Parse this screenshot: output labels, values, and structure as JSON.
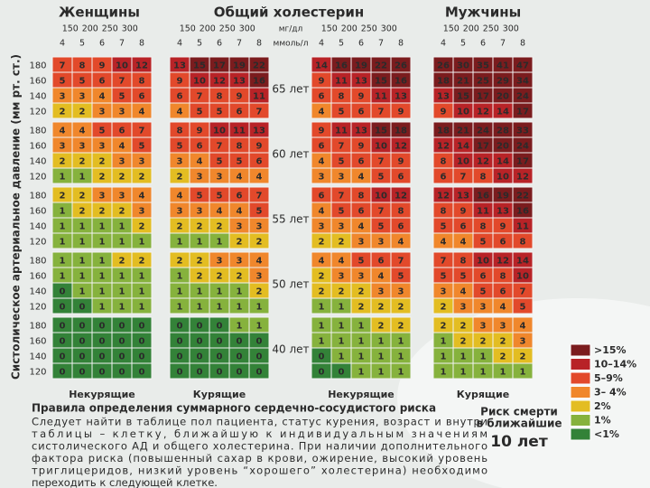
{
  "header": {
    "women": "Женщины",
    "cholesterol": "Общий холестерин",
    "men": "Мужчины",
    "mg_ticks": [
      150,
      200,
      250,
      300
    ],
    "mg_unit": "мг/дл",
    "mmol_ticks": [
      4,
      5,
      6,
      7,
      8
    ],
    "mmol_unit": "ммоль/л"
  },
  "y_axis_label": "Систолическое артериальное давление (мм рт. ст.)",
  "bp_levels": [
    180,
    160,
    140,
    120
  ],
  "ages": [
    "65 лет",
    "60 лет",
    "55 лет",
    "50 лет",
    "40 лет"
  ],
  "panels": [
    {
      "label": "Некурящие",
      "groups": [
        [
          [
            7,
            8,
            9,
            10,
            12
          ],
          [
            5,
            5,
            6,
            7,
            8
          ],
          [
            3,
            3,
            4,
            5,
            6
          ],
          [
            2,
            2,
            3,
            3,
            4
          ]
        ],
        [
          [
            4,
            4,
            5,
            6,
            7
          ],
          [
            3,
            3,
            3,
            4,
            5
          ],
          [
            2,
            2,
            2,
            3,
            3
          ],
          [
            1,
            1,
            2,
            2,
            2
          ]
        ],
        [
          [
            2,
            2,
            3,
            3,
            4
          ],
          [
            1,
            2,
            2,
            2,
            3
          ],
          [
            1,
            1,
            1,
            1,
            2
          ],
          [
            1,
            1,
            1,
            1,
            1
          ]
        ],
        [
          [
            1,
            1,
            1,
            2,
            2
          ],
          [
            1,
            1,
            1,
            1,
            1
          ],
          [
            0,
            1,
            1,
            1,
            1
          ],
          [
            0,
            0,
            1,
            1,
            1
          ]
        ],
        [
          [
            0,
            0,
            0,
            0,
            0
          ],
          [
            0,
            0,
            0,
            0,
            0
          ],
          [
            0,
            0,
            0,
            0,
            0
          ],
          [
            0,
            0,
            0,
            0,
            0
          ]
        ]
      ]
    },
    {
      "label": "Курящие",
      "groups": [
        [
          [
            13,
            15,
            17,
            19,
            22
          ],
          [
            9,
            10,
            12,
            13,
            16
          ],
          [
            6,
            7,
            8,
            9,
            11
          ],
          [
            4,
            5,
            5,
            6,
            7
          ]
        ],
        [
          [
            8,
            9,
            10,
            11,
            13
          ],
          [
            5,
            6,
            7,
            8,
            9
          ],
          [
            3,
            4,
            5,
            5,
            6
          ],
          [
            2,
            3,
            3,
            4,
            4
          ]
        ],
        [
          [
            4,
            5,
            5,
            6,
            7
          ],
          [
            3,
            3,
            4,
            4,
            5
          ],
          [
            2,
            2,
            2,
            3,
            3
          ],
          [
            1,
            1,
            1,
            2,
            2
          ]
        ],
        [
          [
            2,
            2,
            3,
            3,
            4
          ],
          [
            1,
            2,
            2,
            2,
            3
          ],
          [
            1,
            1,
            1,
            1,
            2
          ],
          [
            1,
            1,
            1,
            1,
            1
          ]
        ],
        [
          [
            0,
            0,
            0,
            1,
            1
          ],
          [
            0,
            0,
            0,
            0,
            0
          ],
          [
            0,
            0,
            0,
            0,
            0
          ],
          [
            0,
            0,
            0,
            0,
            0
          ]
        ]
      ]
    },
    {
      "label": "Некурящие",
      "groups": [
        [
          [
            14,
            16,
            19,
            22,
            26
          ],
          [
            9,
            11,
            13,
            15,
            16
          ],
          [
            6,
            8,
            9,
            11,
            13
          ],
          [
            4,
            5,
            6,
            7,
            9
          ]
        ],
        [
          [
            9,
            11,
            13,
            15,
            18
          ],
          [
            6,
            7,
            9,
            10,
            12
          ],
          [
            4,
            5,
            6,
            7,
            9
          ],
          [
            3,
            3,
            4,
            5,
            6
          ]
        ],
        [
          [
            6,
            7,
            8,
            10,
            12
          ],
          [
            4,
            5,
            6,
            7,
            8
          ],
          [
            3,
            3,
            4,
            5,
            6
          ],
          [
            2,
            2,
            3,
            3,
            4
          ]
        ],
        [
          [
            4,
            4,
            5,
            6,
            7
          ],
          [
            2,
            3,
            3,
            4,
            5
          ],
          [
            2,
            2,
            2,
            3,
            3
          ],
          [
            1,
            1,
            2,
            2,
            2
          ]
        ],
        [
          [
            1,
            1,
            1,
            2,
            2
          ],
          [
            1,
            1,
            1,
            1,
            1
          ],
          [
            0,
            1,
            1,
            1,
            1
          ],
          [
            0,
            0,
            1,
            1,
            1
          ]
        ]
      ]
    },
    {
      "label": "Курящие",
      "groups": [
        [
          [
            26,
            30,
            35,
            41,
            47
          ],
          [
            18,
            21,
            25,
            29,
            34
          ],
          [
            13,
            15,
            17,
            20,
            24
          ],
          [
            9,
            10,
            12,
            14,
            17
          ]
        ],
        [
          [
            18,
            21,
            24,
            28,
            33
          ],
          [
            12,
            14,
            17,
            20,
            24
          ],
          [
            8,
            10,
            12,
            14,
            17
          ],
          [
            6,
            7,
            8,
            10,
            12
          ]
        ],
        [
          [
            12,
            13,
            16,
            19,
            22
          ],
          [
            8,
            9,
            11,
            13,
            16
          ],
          [
            5,
            6,
            8,
            9,
            11
          ],
          [
            4,
            4,
            5,
            6,
            8
          ]
        ],
        [
          [
            7,
            8,
            10,
            12,
            14
          ],
          [
            5,
            5,
            6,
            8,
            10
          ],
          [
            3,
            4,
            5,
            6,
            7
          ],
          [
            2,
            3,
            3,
            4,
            5
          ]
        ],
        [
          [
            2,
            2,
            3,
            3,
            4
          ],
          [
            1,
            2,
            2,
            2,
            3
          ],
          [
            1,
            1,
            1,
            2,
            2
          ],
          [
            1,
            1,
            1,
            1,
            1
          ]
        ]
      ]
    }
  ],
  "legend": {
    "items": [
      {
        "label": ">15%",
        "color": "#7b1c1e",
        "text_color": "#ffffff"
      },
      {
        "label": "10–14%",
        "color": "#b82327",
        "text_color": "#ffffff"
      },
      {
        "label": "5–9%",
        "color": "#e2492b",
        "text_color": "#2b2b2b"
      },
      {
        "label": "3– 4%",
        "color": "#f0872c",
        "text_color": "#2b2b2b"
      },
      {
        "label": "2%",
        "color": "#e3bd22",
        "text_color": "#2b2b2b"
      },
      {
        "label": "1%",
        "color": "#86b23d",
        "text_color": "#2b2b2b"
      },
      {
        "label": "<1%",
        "color": "#338238",
        "text_color": "#2b2b2b"
      }
    ],
    "caption": [
      "Риск смерти",
      "в ближайшие",
      "10 лет"
    ]
  },
  "rules": {
    "title": "Правила определения суммарного сердечно-сосудистого риска",
    "lines": [
      "Следует найти в таблице пол пациента, статус курения, возраст и внутри",
      "таблицы – клетку, ближайшую к индивидуальным значениям",
      "систолического АД и общего холестерина. При наличии дополнительного",
      "фактора риска (повышенный сахар в крови, ожирение, высокий уровень",
      "триглицеридов, низкий уровень “хорошего” холестерина) необходимо",
      "переходить к следующей клетке."
    ]
  }
}
